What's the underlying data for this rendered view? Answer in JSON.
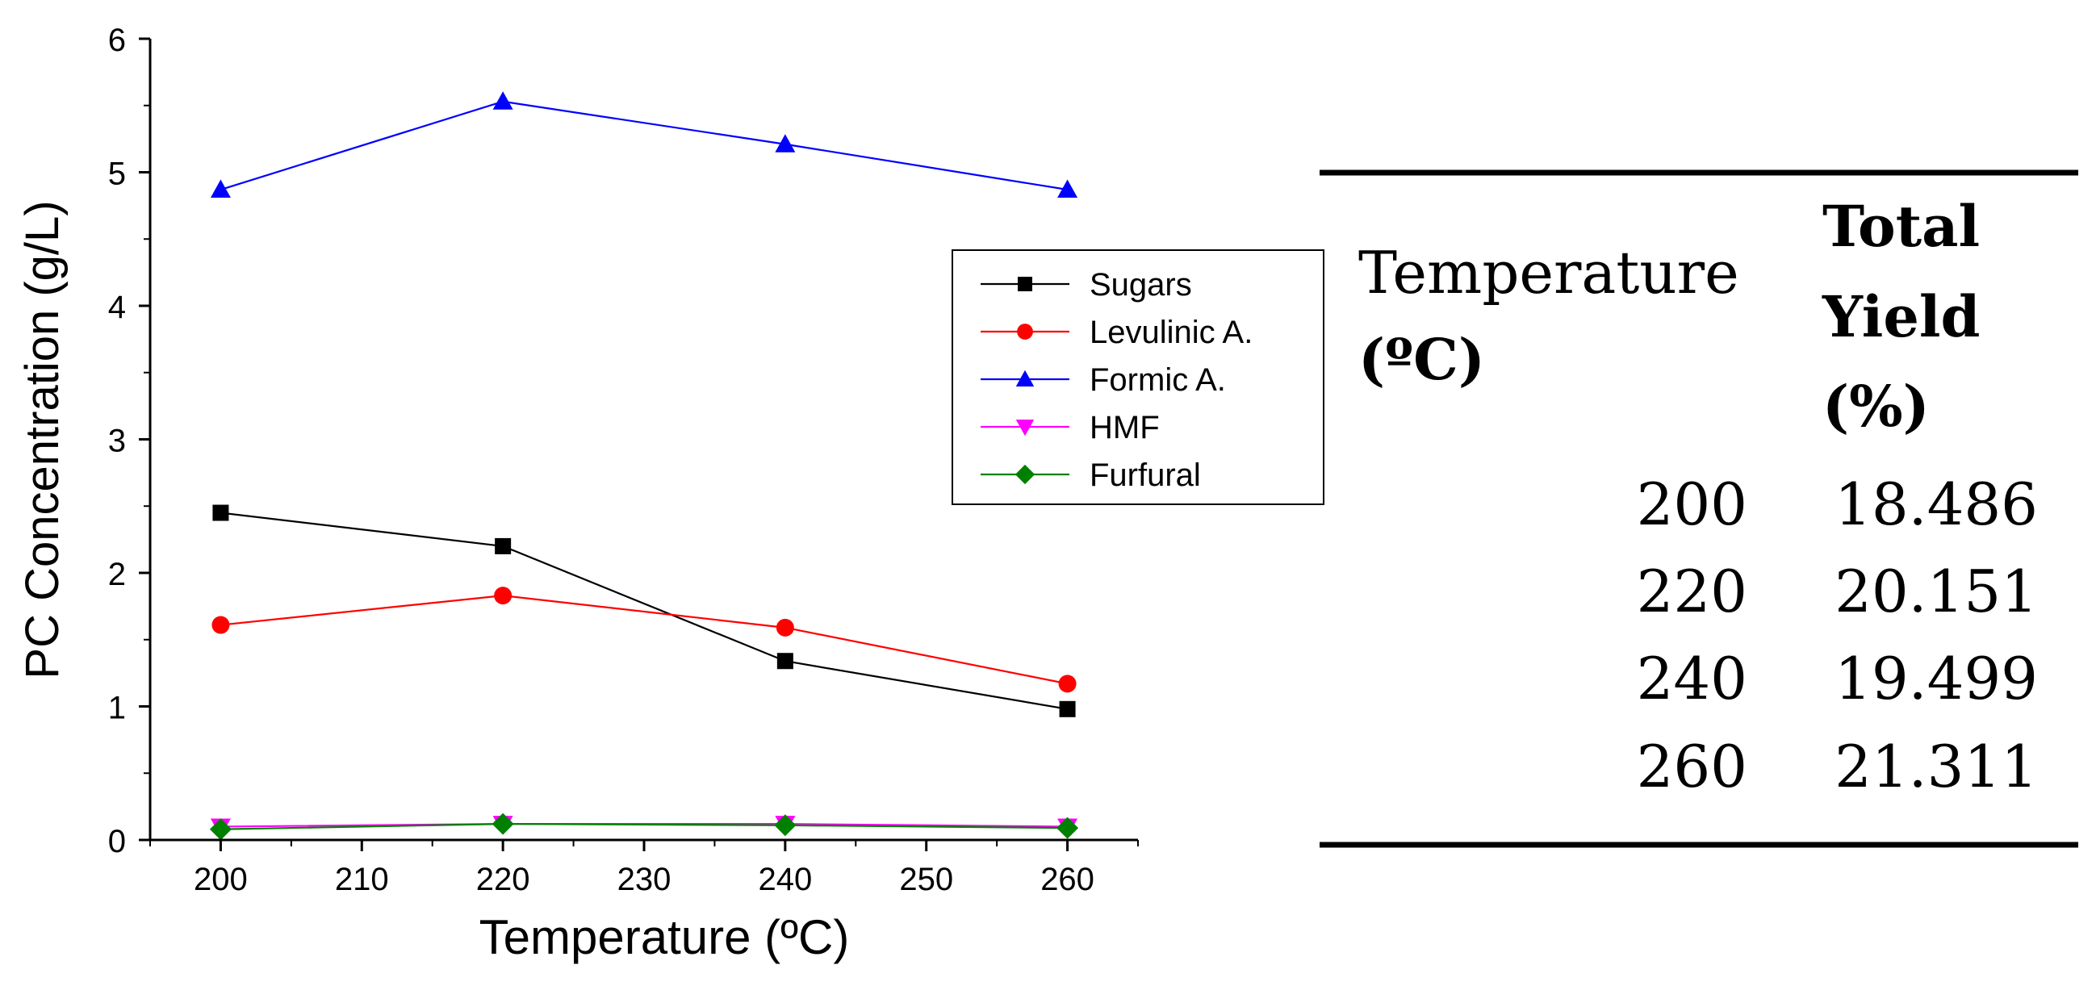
{
  "chart_data": {
    "type": "line",
    "title": "",
    "xlabel": "Temperature (ºC)",
    "ylabel": "PC Concentration (g/L)",
    "xlim": [
      195,
      265
    ],
    "ylim": [
      0,
      6
    ],
    "x_ticks": [
      "200",
      "210",
      "220",
      "230",
      "240",
      "250",
      "260"
    ],
    "y_ticks": [
      "0",
      "1",
      "2",
      "3",
      "4",
      "5",
      "6"
    ],
    "legend_position": "center-right",
    "x": [
      200,
      220,
      240,
      260
    ],
    "series": [
      {
        "name": "Sugars",
        "values": [
          2.45,
          2.2,
          1.34,
          0.98
        ],
        "color": "#000000",
        "marker": "square"
      },
      {
        "name": "Levulinic A.",
        "values": [
          1.61,
          1.83,
          1.59,
          1.17
        ],
        "color": "#ff0000",
        "marker": "circle"
      },
      {
        "name": "Formic A.",
        "values": [
          4.87,
          5.53,
          5.21,
          4.87
        ],
        "color": "#0000ff",
        "marker": "triangle-up"
      },
      {
        "name": "HMF",
        "values": [
          0.1,
          0.12,
          0.12,
          0.1
        ],
        "color": "#ff00ff",
        "marker": "triangle-down"
      },
      {
        "name": "Furfural",
        "values": [
          0.08,
          0.12,
          0.11,
          0.09
        ],
        "color": "#008000",
        "marker": "diamond"
      }
    ]
  },
  "table": {
    "col1_header": "Temperature",
    "col1_unit": "(ºC)",
    "col2_header_line1": "Total",
    "col2_header_line2": "Yield",
    "col2_header_line3": "(%)",
    "rows": [
      {
        "temperature": "200",
        "yield": "18.486"
      },
      {
        "temperature": "220",
        "yield": "20.151"
      },
      {
        "temperature": "240",
        "yield": "19.499"
      },
      {
        "temperature": "260",
        "yield": "21.311"
      }
    ]
  }
}
